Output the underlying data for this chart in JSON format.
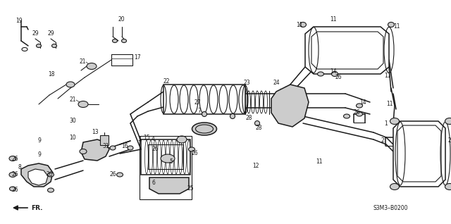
{
  "bg_color": "#ffffff",
  "line_color": "#1a1a1a",
  "gray_color": "#888888",
  "light_gray": "#cccccc",
  "part_number": "S3M3-B0200",
  "figsize": [
    6.4,
    3.18
  ],
  "dpi": 100
}
